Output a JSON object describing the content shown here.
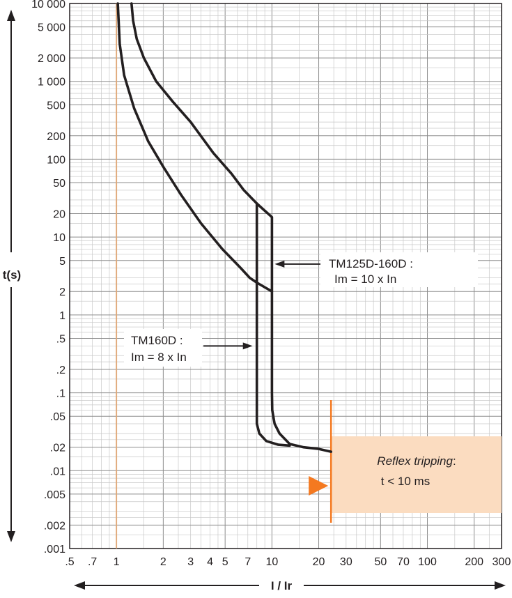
{
  "chart_data": {
    "type": "line",
    "xlabel": "I / Ir",
    "ylabel": "t(s)",
    "x_scale": "log",
    "y_scale": "log",
    "xlim": [
      0.5,
      300
    ],
    "ylim": [
      0.001,
      10000
    ],
    "grid": true,
    "x_ticks": [
      {
        "v": 0.5,
        "label": ".5"
      },
      {
        "v": 0.7,
        "label": ".7"
      },
      {
        "v": 1,
        "label": "1"
      },
      {
        "v": 2,
        "label": "2"
      },
      {
        "v": 3,
        "label": "3"
      },
      {
        "v": 4,
        "label": "4"
      },
      {
        "v": 5,
        "label": "5"
      },
      {
        "v": 7,
        "label": "7"
      },
      {
        "v": 10,
        "label": "10"
      },
      {
        "v": 20,
        "label": "20"
      },
      {
        "v": 30,
        "label": "30"
      },
      {
        "v": 50,
        "label": "50"
      },
      {
        "v": 70,
        "label": "70"
      },
      {
        "v": 100,
        "label": "100"
      },
      {
        "v": 200,
        "label": "200"
      },
      {
        "v": 300,
        "label": "300"
      }
    ],
    "y_ticks": [
      {
        "v": 10000,
        "label": "10 000"
      },
      {
        "v": 5000,
        "label": "5 000"
      },
      {
        "v": 2000,
        "label": "2 000"
      },
      {
        "v": 1000,
        "label": "1 000"
      },
      {
        "v": 500,
        "label": "500"
      },
      {
        "v": 200,
        "label": "200"
      },
      {
        "v": 100,
        "label": "100"
      },
      {
        "v": 50,
        "label": "50"
      },
      {
        "v": 20,
        "label": "20"
      },
      {
        "v": 10,
        "label": "10"
      },
      {
        "v": 5,
        "label": "5"
      },
      {
        "v": 2,
        "label": "2"
      },
      {
        "v": 1,
        "label": "1"
      },
      {
        "v": 0.5,
        "label": ".5"
      },
      {
        "v": 0.2,
        "label": ".2"
      },
      {
        "v": 0.1,
        "label": ".1"
      },
      {
        "v": 0.05,
        "label": ".05"
      },
      {
        "v": 0.02,
        "label": ".02"
      },
      {
        "v": 0.01,
        "label": ".01"
      },
      {
        "v": 0.005,
        "label": ".005"
      },
      {
        "v": 0.002,
        "label": ".002"
      },
      {
        "v": 0.001,
        "label": ".001"
      }
    ],
    "reference_line_x": 1,
    "series": [
      {
        "points": [
          [
            1.02,
            10000
          ],
          [
            1.05,
            3000
          ],
          [
            1.12,
            1200
          ],
          [
            1.3,
            450
          ],
          [
            1.6,
            170
          ],
          [
            2,
            80
          ],
          [
            2.6,
            35
          ],
          [
            3.5,
            15
          ],
          [
            4.8,
            7
          ],
          [
            6.3,
            4
          ],
          [
            7.2,
            3
          ],
          [
            8,
            2.6
          ],
          [
            10,
            2
          ],
          [
            10,
            0.1
          ],
          [
            10.05,
            0.06
          ],
          [
            10.4,
            0.04
          ],
          [
            11.2,
            0.03
          ],
          [
            13,
            0.022
          ],
          [
            16,
            0.02
          ],
          [
            20,
            0.019
          ],
          [
            24,
            0.0175
          ]
        ]
      },
      {
        "points": [
          [
            1.25,
            10000
          ],
          [
            1.28,
            6000
          ],
          [
            1.35,
            3500
          ],
          [
            1.5,
            2000
          ],
          [
            1.8,
            1000
          ],
          [
            2.3,
            550
          ],
          [
            3,
            300
          ],
          [
            4.2,
            120
          ],
          [
            5.5,
            65
          ],
          [
            6.6,
            40
          ],
          [
            8,
            27
          ],
          [
            8,
            0.04
          ],
          [
            8.3,
            0.03
          ],
          [
            9.2,
            0.024
          ],
          [
            11,
            0.0215
          ],
          [
            13,
            0.021
          ]
        ]
      },
      {
        "points": [
          [
            8,
            27
          ],
          [
            10,
            18
          ],
          [
            10,
            2
          ]
        ]
      }
    ],
    "annotations": [
      {
        "line1": "TM125D-160D :",
        "line2": "Im = 10 x In"
      },
      {
        "line1": "TM160D :",
        "line2": "Im = 8 x In"
      }
    ],
    "reflex_box": {
      "x_from": 24,
      "title": "Reflex tripping",
      "title_suffix": ":",
      "text": "t < 10 ms",
      "fill": "#fbdcc0",
      "accent": "#f47920"
    }
  }
}
